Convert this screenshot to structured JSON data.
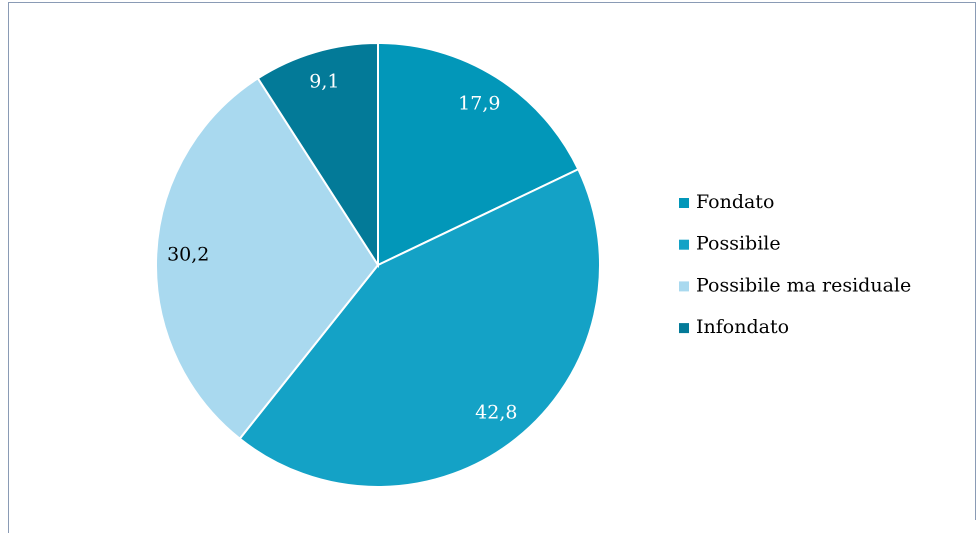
{
  "chart_data": {
    "type": "pie",
    "categories": [
      "Fondato",
      "Possibile",
      "Possibile ma residuale",
      "Infondato"
    ],
    "values": [
      17.9,
      42.8,
      30.2,
      9.1
    ],
    "value_labels": [
      "17,9",
      "42,8",
      "30,2",
      "9,1"
    ],
    "colors": [
      "#0297b9",
      "#14a2c6",
      "#a9d9ef",
      "#037a98"
    ],
    "legend": "right"
  }
}
